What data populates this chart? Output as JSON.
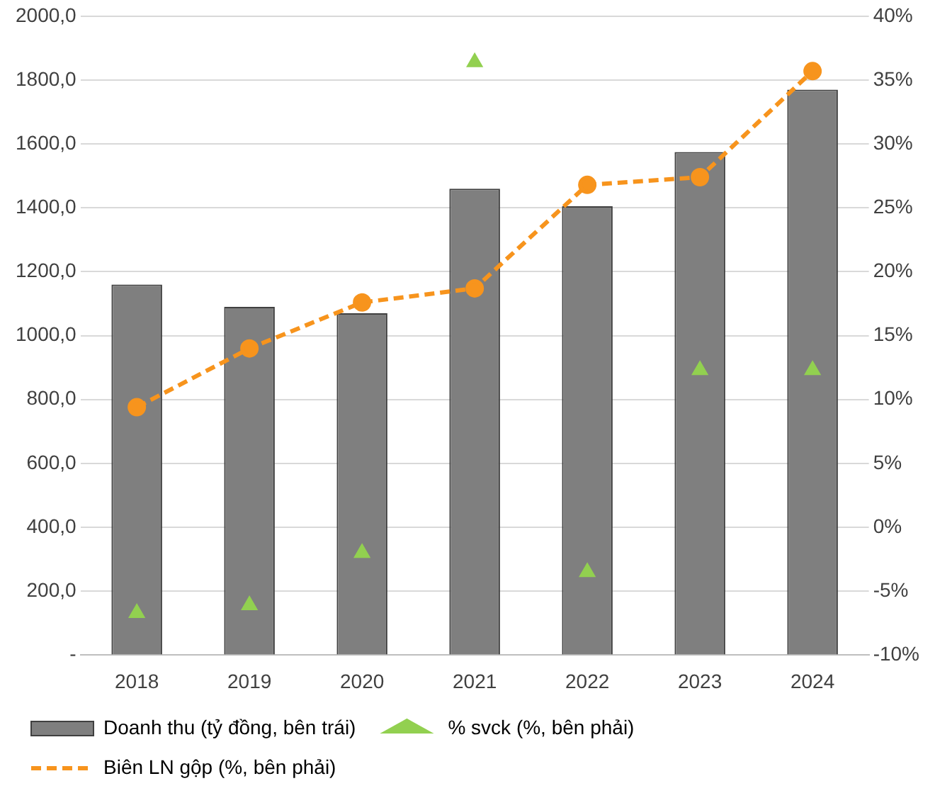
{
  "chart_data": {
    "type": "bar",
    "categories": [
      "2018",
      "2019",
      "2020",
      "2021",
      "2022",
      "2023",
      "2024"
    ],
    "series": [
      {
        "name": "Doanh thu (tỷ đồng, bên trái)",
        "color": "#7f7f7f",
        "values": [
          1160,
          1090,
          1070,
          1460,
          1405,
          1575,
          1770
        ]
      },
      {
        "name": "% svck (%, bên phải)",
        "type": "scatter",
        "axis": "y2",
        "marker": "triangle",
        "color": "#92d050",
        "values": [
          -6.7,
          -6.1,
          -2.0,
          36.4,
          -3.5,
          12.3,
          12.3
        ]
      },
      {
        "name": "Biên LN gộp (%, bên phải)",
        "type": "line",
        "axis": "y2",
        "marker": "circle",
        "line_style": "dashed",
        "color": "#f7941d",
        "values": [
          9.4,
          14.0,
          17.6,
          18.7,
          26.8,
          27.4,
          35.7
        ]
      }
    ],
    "ylim": [
      0,
      2000
    ],
    "yticks": [
      {
        "value": 0,
        "label": "-"
      },
      {
        "value": 200,
        "label": "200,0"
      },
      {
        "value": 400,
        "label": "400,0"
      },
      {
        "value": 600,
        "label": "600,0"
      },
      {
        "value": 800,
        "label": "800,0"
      },
      {
        "value": 1000,
        "label": "1000,0"
      },
      {
        "value": 1200,
        "label": "1200,0"
      },
      {
        "value": 1400,
        "label": "1400,0"
      },
      {
        "value": 1600,
        "label": "1600,0"
      },
      {
        "value": 1800,
        "label": "1800,0"
      },
      {
        "value": 2000,
        "label": "2000,0"
      }
    ],
    "y2lim": [
      -10,
      40
    ],
    "y2ticks": [
      {
        "value": -10,
        "label": "-10%"
      },
      {
        "value": -5,
        "label": "-5%"
      },
      {
        "value": 0,
        "label": "0%"
      },
      {
        "value": 5,
        "label": "5%"
      },
      {
        "value": 10,
        "label": "10%"
      },
      {
        "value": 15,
        "label": "15%"
      },
      {
        "value": 20,
        "label": "20%"
      },
      {
        "value": 25,
        "label": "25%"
      },
      {
        "value": 30,
        "label": "30%"
      },
      {
        "value": 35,
        "label": "35%"
      },
      {
        "value": 40,
        "label": "40%"
      }
    ],
    "grid": "y",
    "legend": "bottom"
  }
}
